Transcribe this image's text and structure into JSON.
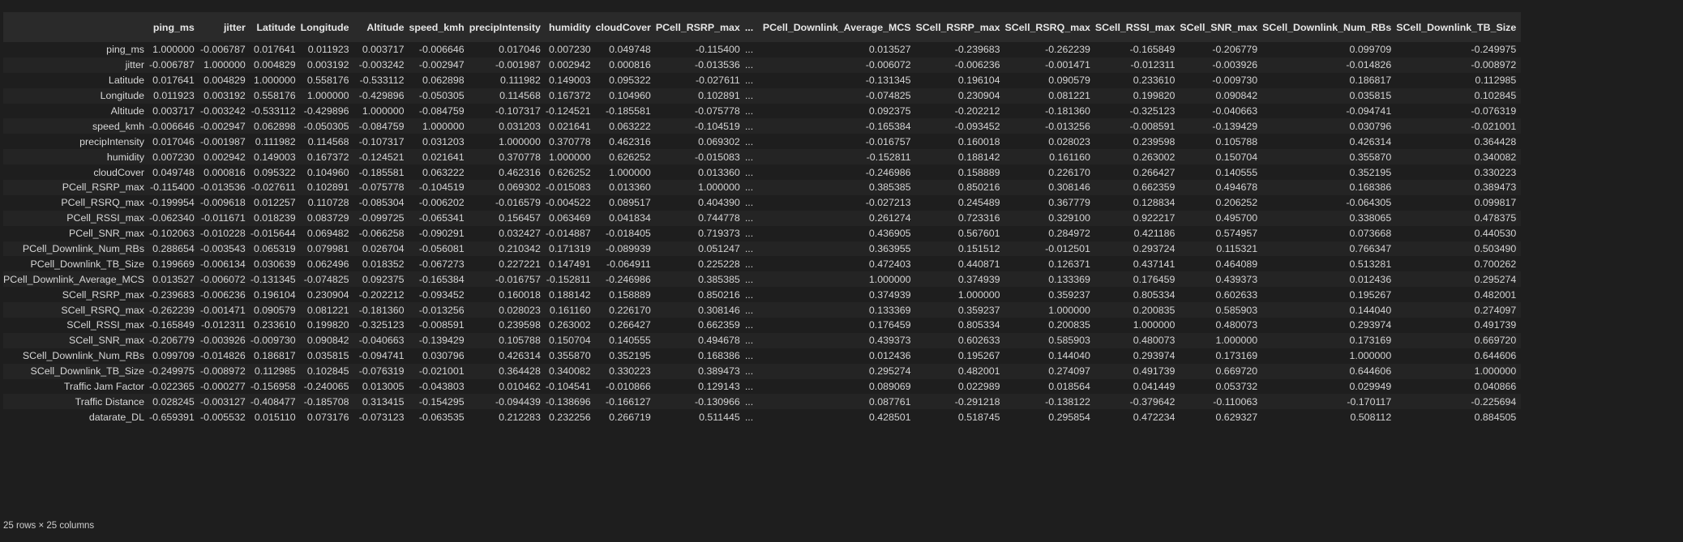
{
  "columns": [
    "ping_ms",
    "jitter",
    "Latitude",
    "Longitude",
    "Altitude",
    "speed_kmh",
    "precipIntensity",
    "humidity",
    "cloudCover",
    "PCell_RSRP_max",
    "...",
    "PCell_Downlink_Average_MCS",
    "SCell_RSRP_max",
    "SCell_RSRQ_max",
    "SCell_RSSI_max",
    "SCell_SNR_max",
    "SCell_Downlink_Num_RBs",
    "SCell_Downlink_TB_Size"
  ],
  "rows": [
    {
      "label": "ping_ms",
      "values": [
        "1.000000",
        "-0.006787",
        "0.017641",
        "0.011923",
        "0.003717",
        "-0.006646",
        "0.017046",
        "0.007230",
        "0.049748",
        "-0.115400",
        "...",
        "0.013527",
        "-0.239683",
        "-0.262239",
        "-0.165849",
        "-0.206779",
        "0.099709",
        "-0.249975"
      ]
    },
    {
      "label": "jitter",
      "values": [
        "-0.006787",
        "1.000000",
        "0.004829",
        "0.003192",
        "-0.003242",
        "-0.002947",
        "-0.001987",
        "0.002942",
        "0.000816",
        "-0.013536",
        "...",
        "-0.006072",
        "-0.006236",
        "-0.001471",
        "-0.012311",
        "-0.003926",
        "-0.014826",
        "-0.008972"
      ]
    },
    {
      "label": "Latitude",
      "values": [
        "0.017641",
        "0.004829",
        "1.000000",
        "0.558176",
        "-0.533112",
        "0.062898",
        "0.111982",
        "0.149003",
        "0.095322",
        "-0.027611",
        "...",
        "-0.131345",
        "0.196104",
        "0.090579",
        "0.233610",
        "-0.009730",
        "0.186817",
        "0.112985"
      ]
    },
    {
      "label": "Longitude",
      "values": [
        "0.011923",
        "0.003192",
        "0.558176",
        "1.000000",
        "-0.429896",
        "-0.050305",
        "0.114568",
        "0.167372",
        "0.104960",
        "0.102891",
        "...",
        "-0.074825",
        "0.230904",
        "0.081221",
        "0.199820",
        "0.090842",
        "0.035815",
        "0.102845"
      ]
    },
    {
      "label": "Altitude",
      "values": [
        "0.003717",
        "-0.003242",
        "-0.533112",
        "-0.429896",
        "1.000000",
        "-0.084759",
        "-0.107317",
        "-0.124521",
        "-0.185581",
        "-0.075778",
        "...",
        "0.092375",
        "-0.202212",
        "-0.181360",
        "-0.325123",
        "-0.040663",
        "-0.094741",
        "-0.076319"
      ]
    },
    {
      "label": "speed_kmh",
      "values": [
        "-0.006646",
        "-0.002947",
        "0.062898",
        "-0.050305",
        "-0.084759",
        "1.000000",
        "0.031203",
        "0.021641",
        "0.063222",
        "-0.104519",
        "...",
        "-0.165384",
        "-0.093452",
        "-0.013256",
        "-0.008591",
        "-0.139429",
        "0.030796",
        "-0.021001"
      ]
    },
    {
      "label": "precipIntensity",
      "values": [
        "0.017046",
        "-0.001987",
        "0.111982",
        "0.114568",
        "-0.107317",
        "0.031203",
        "1.000000",
        "0.370778",
        "0.462316",
        "0.069302",
        "...",
        "-0.016757",
        "0.160018",
        "0.028023",
        "0.239598",
        "0.105788",
        "0.426314",
        "0.364428"
      ]
    },
    {
      "label": "humidity",
      "values": [
        "0.007230",
        "0.002942",
        "0.149003",
        "0.167372",
        "-0.124521",
        "0.021641",
        "0.370778",
        "1.000000",
        "0.626252",
        "-0.015083",
        "...",
        "-0.152811",
        "0.188142",
        "0.161160",
        "0.263002",
        "0.150704",
        "0.355870",
        "0.340082"
      ]
    },
    {
      "label": "cloudCover",
      "values": [
        "0.049748",
        "0.000816",
        "0.095322",
        "0.104960",
        "-0.185581",
        "0.063222",
        "0.462316",
        "0.626252",
        "1.000000",
        "0.013360",
        "...",
        "-0.246986",
        "0.158889",
        "0.226170",
        "0.266427",
        "0.140555",
        "0.352195",
        "0.330223"
      ]
    },
    {
      "label": "PCell_RSRP_max",
      "values": [
        "-0.115400",
        "-0.013536",
        "-0.027611",
        "0.102891",
        "-0.075778",
        "-0.104519",
        "0.069302",
        "-0.015083",
        "0.013360",
        "1.000000",
        "...",
        "0.385385",
        "0.850216",
        "0.308146",
        "0.662359",
        "0.494678",
        "0.168386",
        "0.389473"
      ]
    },
    {
      "label": "PCell_RSRQ_max",
      "values": [
        "-0.199954",
        "-0.009618",
        "0.012257",
        "0.110728",
        "-0.085304",
        "-0.006202",
        "-0.016579",
        "-0.004522",
        "0.089517",
        "0.404390",
        "...",
        "-0.027213",
        "0.245489",
        "0.367779",
        "0.128834",
        "0.206252",
        "-0.064305",
        "0.099817"
      ]
    },
    {
      "label": "PCell_RSSI_max",
      "values": [
        "-0.062340",
        "-0.011671",
        "0.018239",
        "0.083729",
        "-0.099725",
        "-0.065341",
        "0.156457",
        "0.063469",
        "0.041834",
        "0.744778",
        "...",
        "0.261274",
        "0.723316",
        "0.329100",
        "0.922217",
        "0.495700",
        "0.338065",
        "0.478375"
      ]
    },
    {
      "label": "PCell_SNR_max",
      "values": [
        "-0.102063",
        "-0.010228",
        "-0.015644",
        "0.069482",
        "-0.066258",
        "-0.090291",
        "0.032427",
        "-0.014887",
        "-0.018405",
        "0.719373",
        "...",
        "0.436905",
        "0.567601",
        "0.284972",
        "0.421186",
        "0.574957",
        "0.073668",
        "0.440530"
      ]
    },
    {
      "label": "PCell_Downlink_Num_RBs",
      "values": [
        "0.288654",
        "-0.003543",
        "0.065319",
        "0.079981",
        "0.026704",
        "-0.056081",
        "0.210342",
        "0.171319",
        "-0.089939",
        "0.051247",
        "...",
        "0.363955",
        "0.151512",
        "-0.012501",
        "0.293724",
        "0.115321",
        "0.766347",
        "0.503490"
      ]
    },
    {
      "label": "PCell_Downlink_TB_Size",
      "values": [
        "0.199669",
        "-0.006134",
        "0.030639",
        "0.062496",
        "0.018352",
        "-0.067273",
        "0.227221",
        "0.147491",
        "-0.064911",
        "0.225228",
        "...",
        "0.472403",
        "0.440871",
        "0.126371",
        "0.437141",
        "0.464089",
        "0.513281",
        "0.700262"
      ]
    },
    {
      "label": "PCell_Downlink_Average_MCS",
      "values": [
        "0.013527",
        "-0.006072",
        "-0.131345",
        "-0.074825",
        "0.092375",
        "-0.165384",
        "-0.016757",
        "-0.152811",
        "-0.246986",
        "0.385385",
        "...",
        "1.000000",
        "0.374939",
        "0.133369",
        "0.176459",
        "0.439373",
        "0.012436",
        "0.295274"
      ]
    },
    {
      "label": "SCell_RSRP_max",
      "values": [
        "-0.239683",
        "-0.006236",
        "0.196104",
        "0.230904",
        "-0.202212",
        "-0.093452",
        "0.160018",
        "0.188142",
        "0.158889",
        "0.850216",
        "...",
        "0.374939",
        "1.000000",
        "0.359237",
        "0.805334",
        "0.602633",
        "0.195267",
        "0.482001"
      ]
    },
    {
      "label": "SCell_RSRQ_max",
      "values": [
        "-0.262239",
        "-0.001471",
        "0.090579",
        "0.081221",
        "-0.181360",
        "-0.013256",
        "0.028023",
        "0.161160",
        "0.226170",
        "0.308146",
        "...",
        "0.133369",
        "0.359237",
        "1.000000",
        "0.200835",
        "0.585903",
        "0.144040",
        "0.274097"
      ]
    },
    {
      "label": "SCell_RSSI_max",
      "values": [
        "-0.165849",
        "-0.012311",
        "0.233610",
        "0.199820",
        "-0.325123",
        "-0.008591",
        "0.239598",
        "0.263002",
        "0.266427",
        "0.662359",
        "...",
        "0.176459",
        "0.805334",
        "0.200835",
        "1.000000",
        "0.480073",
        "0.293974",
        "0.491739"
      ]
    },
    {
      "label": "SCell_SNR_max",
      "values": [
        "-0.206779",
        "-0.003926",
        "-0.009730",
        "0.090842",
        "-0.040663",
        "-0.139429",
        "0.105788",
        "0.150704",
        "0.140555",
        "0.494678",
        "...",
        "0.439373",
        "0.602633",
        "0.585903",
        "0.480073",
        "1.000000",
        "0.173169",
        "0.669720"
      ]
    },
    {
      "label": "SCell_Downlink_Num_RBs",
      "values": [
        "0.099709",
        "-0.014826",
        "0.186817",
        "0.035815",
        "-0.094741",
        "0.030796",
        "0.426314",
        "0.355870",
        "0.352195",
        "0.168386",
        "...",
        "0.012436",
        "0.195267",
        "0.144040",
        "0.293974",
        "0.173169",
        "1.000000",
        "0.644606"
      ]
    },
    {
      "label": "SCell_Downlink_TB_Size",
      "values": [
        "-0.249975",
        "-0.008972",
        "0.112985",
        "0.102845",
        "-0.076319",
        "-0.021001",
        "0.364428",
        "0.340082",
        "0.330223",
        "0.389473",
        "...",
        "0.295274",
        "0.482001",
        "0.274097",
        "0.491739",
        "0.669720",
        "0.644606",
        "1.000000"
      ]
    },
    {
      "label": "Traffic Jam Factor",
      "values": [
        "-0.022365",
        "-0.000277",
        "-0.156958",
        "-0.240065",
        "0.013005",
        "-0.043803",
        "0.010462",
        "-0.104541",
        "-0.010866",
        "0.129143",
        "...",
        "0.089069",
        "0.022989",
        "0.018564",
        "0.041449",
        "0.053732",
        "0.029949",
        "0.040866"
      ]
    },
    {
      "label": "Traffic Distance",
      "values": [
        "0.028245",
        "-0.003127",
        "-0.408477",
        "-0.185708",
        "0.313415",
        "-0.154295",
        "-0.094439",
        "-0.138696",
        "-0.166127",
        "-0.130966",
        "...",
        "0.087761",
        "-0.291218",
        "-0.138122",
        "-0.379642",
        "-0.110063",
        "-0.170117",
        "-0.225694"
      ]
    },
    {
      "label": "datarate_DL",
      "values": [
        "-0.659391",
        "-0.005532",
        "0.015110",
        "0.073176",
        "-0.073123",
        "-0.063535",
        "0.212283",
        "0.232256",
        "0.266719",
        "0.511445",
        "...",
        "0.428501",
        "0.518745",
        "0.295854",
        "0.472234",
        "0.629327",
        "0.508112",
        "0.884505"
      ]
    }
  ],
  "shape_note": "25 rows × 25 columns"
}
